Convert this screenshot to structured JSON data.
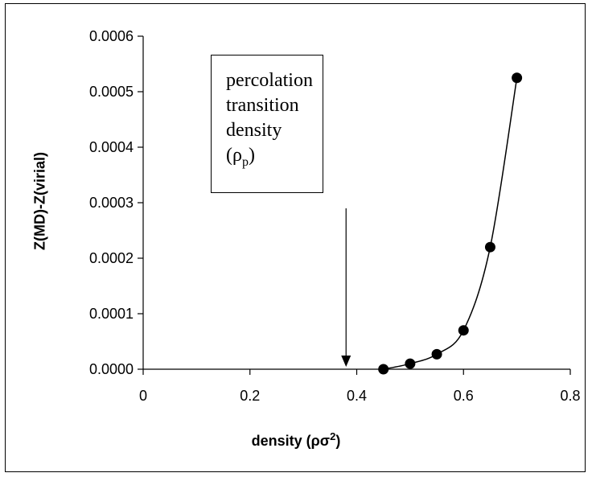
{
  "chart_data": {
    "type": "scatter",
    "title": "",
    "xlabel_prefix": "density (",
    "xlabel_symbol": "ρσ",
    "xlabel_sup": "2",
    "xlabel_suffix": ")",
    "ylabel": "Z(MD)-Z(virial)",
    "xlim": [
      0,
      0.8
    ],
    "ylim": [
      0,
      0.0006
    ],
    "x_ticks": [
      "0",
      "0.2",
      "0.4",
      "0.6",
      "0.8"
    ],
    "y_ticks": [
      "0.0000",
      "0.0001",
      "0.0002",
      "0.0003",
      "0.0004",
      "0.0005",
      "0.0006"
    ],
    "grid": false,
    "series": [
      {
        "marker": "filled-circle",
        "smoothed_line": true,
        "x": [
          0.45,
          0.5,
          0.55,
          0.6,
          0.65,
          0.7
        ],
        "y": [
          0.0,
          1e-05,
          2.7e-05,
          7e-05,
          0.00022,
          0.000525
        ]
      }
    ],
    "annotation": {
      "lines": [
        "percolation",
        "transition",
        "density"
      ],
      "symbol_line": "(ρ",
      "symbol_sub": "p",
      "symbol_close": ")",
      "arrow_x": 0.38,
      "arrow_direction": "down"
    }
  }
}
